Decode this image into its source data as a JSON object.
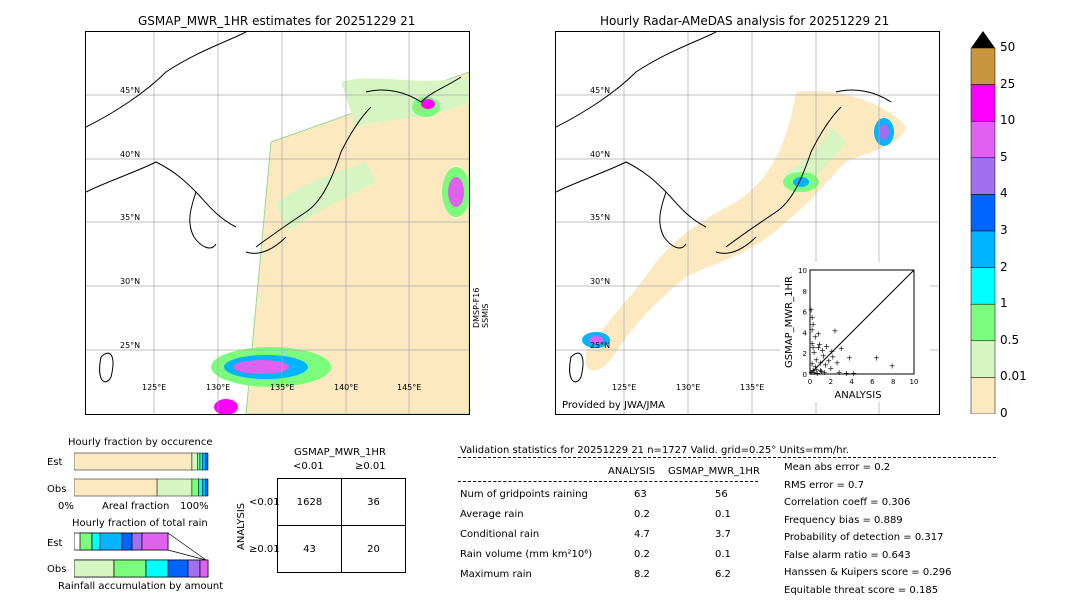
{
  "left_map": {
    "title": "GSMAP_MWR_1HR estimates for 20251229 21",
    "lat_labels": [
      "45°N",
      "40°N",
      "35°N",
      "30°N",
      "25°N"
    ],
    "lon_labels": [
      "125°E",
      "130°E",
      "135°E",
      "140°E",
      "145°E"
    ],
    "sensor_label_1": "DMSP-F16",
    "sensor_label_2": "SSMIS"
  },
  "right_map": {
    "title": "Hourly Radar-AMeDAS analysis for 20251229 21",
    "lat_labels": [
      "45°N",
      "40°N",
      "35°N",
      "30°N",
      "25°N"
    ],
    "lon_labels": [
      "125°E",
      "130°E",
      "135°E"
    ],
    "credit": "Provided by JWA/JMA"
  },
  "colorbar": {
    "labels": [
      "50",
      "25",
      "10",
      "5",
      "4",
      "3",
      "2",
      "1",
      "0.5",
      "0.01",
      "0"
    ],
    "colors": [
      "#c8963c",
      "#ff00ff",
      "#e060f0",
      "#a070f0",
      "#0064ff",
      "#00b4ff",
      "#00ffff",
      "#7cfc7c",
      "#d6f5c2",
      "#fde9c0"
    ]
  },
  "scatter": {
    "ylabel": "GSMAP_MWR_1HR",
    "xlabel": "ANALYSIS",
    "ticks": [
      "0",
      "2",
      "4",
      "6",
      "8",
      "10"
    ],
    "ytick_top": "10"
  },
  "chart_data": {
    "type": "scatter",
    "xlabel": "ANALYSIS",
    "ylabel": "GSMAP_MWR_1HR",
    "xlim": [
      0,
      10
    ],
    "ylim": [
      0,
      10
    ],
    "points": [
      [
        0.1,
        6.2
      ],
      [
        0.2,
        5.5
      ],
      [
        0.3,
        4.8
      ],
      [
        0.5,
        3.6
      ],
      [
        0.2,
        3.0
      ],
      [
        0.8,
        2.6
      ],
      [
        1.2,
        2.3
      ],
      [
        0.4,
        2.1
      ],
      [
        1.6,
        2.7
      ],
      [
        2.4,
        4.2
      ],
      [
        3.0,
        2.5
      ],
      [
        2.2,
        1.7
      ],
      [
        0.6,
        1.4
      ],
      [
        1.0,
        1.1
      ],
      [
        1.5,
        0.9
      ],
      [
        2.0,
        0.6
      ],
      [
        0.3,
        0.4
      ],
      [
        0.1,
        0.2
      ],
      [
        0.7,
        0.1
      ],
      [
        1.1,
        0.3
      ],
      [
        2.8,
        0.2
      ],
      [
        3.5,
        0.1
      ],
      [
        4.2,
        0.1
      ],
      [
        6.4,
        1.6
      ],
      [
        7.9,
        0.8
      ],
      [
        0.2,
        1.0
      ],
      [
        0.5,
        0.7
      ],
      [
        1.3,
        1.8
      ],
      [
        0.9,
        2.9
      ],
      [
        1.8,
        1.3
      ],
      [
        2.6,
        1.1
      ],
      [
        0.4,
        0.2
      ],
      [
        0.6,
        0.5
      ],
      [
        1.4,
        0.2
      ],
      [
        0.2,
        4.3
      ],
      [
        0.8,
        3.9
      ],
      [
        3.8,
        1.6
      ],
      [
        2.1,
        2.2
      ],
      [
        0.3,
        2.6
      ],
      [
        1.0,
        0.4
      ]
    ]
  },
  "occurrence": {
    "title": "Hourly fraction by occurence",
    "row_labels": [
      "Est",
      "Obs"
    ],
    "xaxis_left": "0%",
    "xaxis_mid": "Areal fraction",
    "xaxis_right": "100%",
    "est_fractions": [
      0.88,
      0.04,
      0.02,
      0.02,
      0.02,
      0.02
    ],
    "obs_fractions": [
      0.62,
      0.26,
      0.05,
      0.03,
      0.02,
      0.02
    ]
  },
  "total_rain": {
    "title": "Hourly fraction of total rain",
    "row_labels": [
      "Est",
      "Obs"
    ],
    "axis_label": "Rainfall accumulation by amount"
  },
  "contingency": {
    "title": "GSMAP_MWR_1HR",
    "col_headers": [
      "<0.01",
      "≥0.01"
    ],
    "row_headers": [
      "<0.01",
      "≥0.01"
    ],
    "side_label": "ANALYSIS",
    "cells": [
      "1628",
      "36",
      "43",
      "20"
    ]
  },
  "validation": {
    "header": "Validation statistics for 20251229 21  n=1727 Valid. grid=0.25° Units=mm/hr.",
    "col_analysis": "ANALYSIS",
    "col_gsmap": "GSMAP_MWR_1HR",
    "rows": [
      {
        "label": "Num of gridpoints raining",
        "analysis": "63",
        "gsmap": "56"
      },
      {
        "label": "Average rain",
        "analysis": "0.2",
        "gsmap": "0.1"
      },
      {
        "label": "Conditional rain",
        "analysis": "4.7",
        "gsmap": "3.7"
      },
      {
        "label": "Rain volume (mm km²10⁶)",
        "analysis": "0.2",
        "gsmap": "0.1"
      },
      {
        "label": "Maximum rain",
        "analysis": "8.2",
        "gsmap": "6.2"
      }
    ],
    "scores": [
      "Mean abs error =    0.2",
      "RMS error =    0.7",
      "Correlation coeff =  0.306",
      "Frequency bias =  0.889",
      "Probability of detection =  0.317",
      "False alarm ratio =  0.643",
      "Hanssen & Kuipers score =  0.296",
      "Equitable threat score =  0.185"
    ]
  }
}
